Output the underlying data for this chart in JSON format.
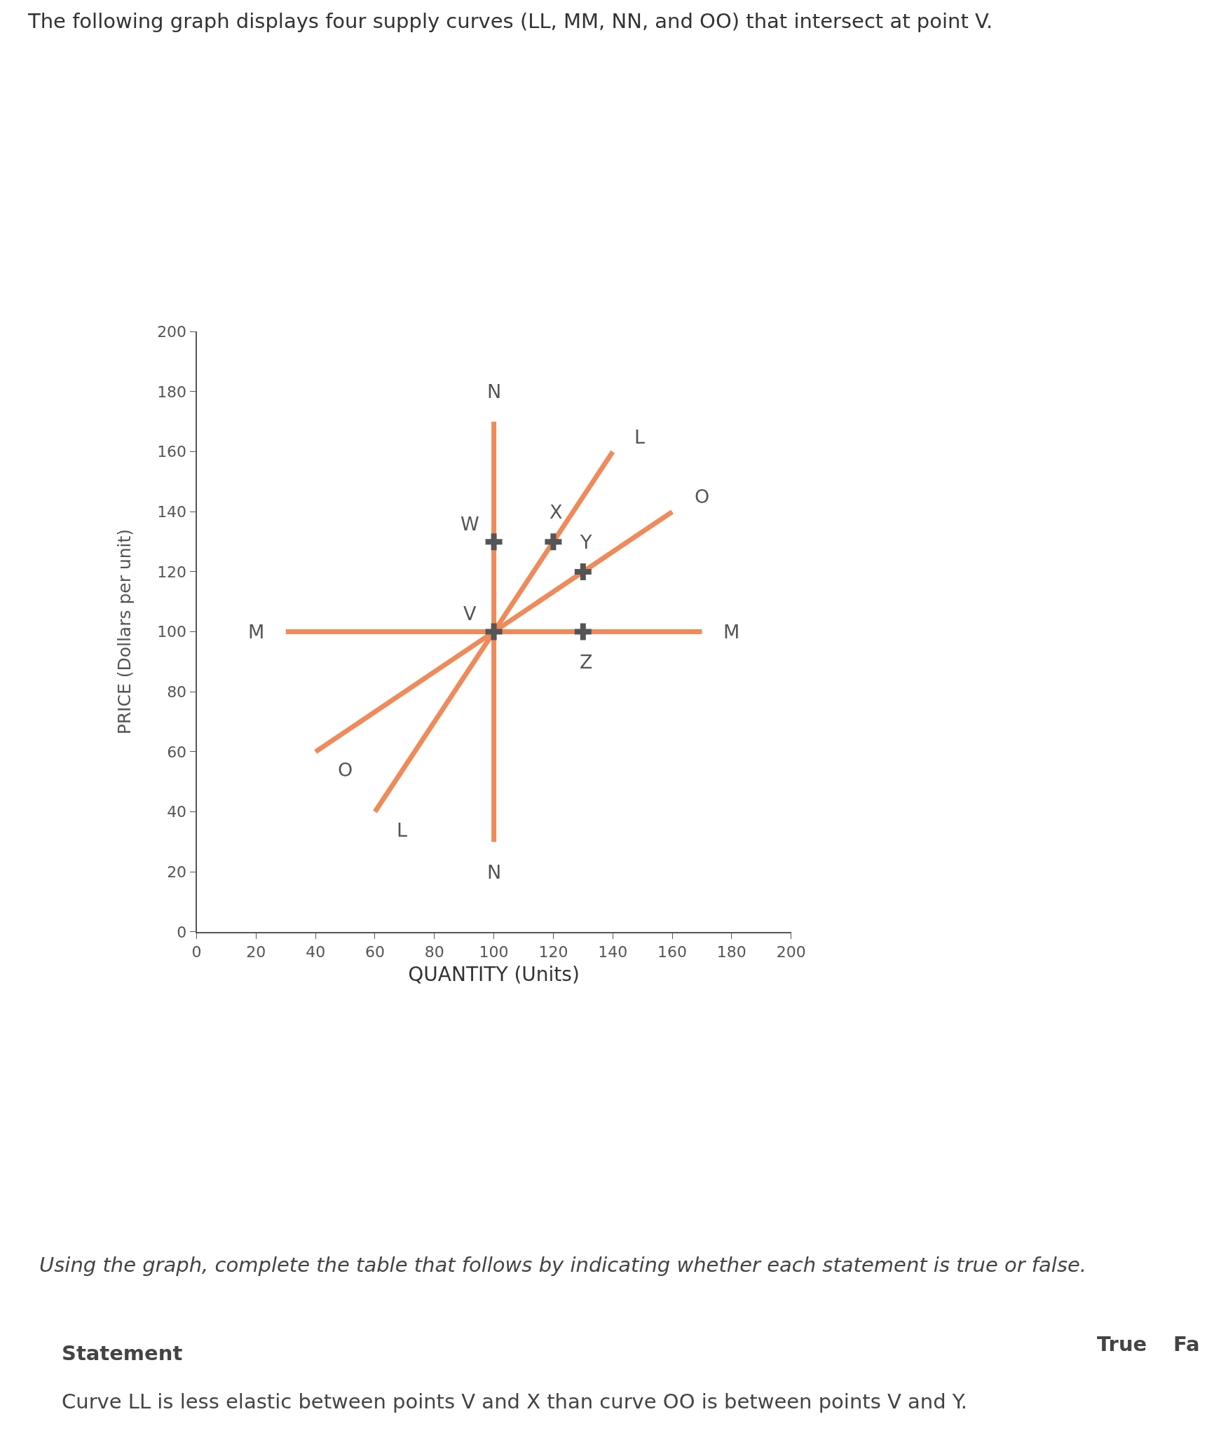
{
  "chart_data": {
    "type": "line",
    "title": "The following graph displays four supply curves (LL, MM, NN, and OO) that intersect at point V.",
    "xlabel": "QUANTITY (Units)",
    "ylabel": "PRICE (Dollars per unit)",
    "xlim": [
      0,
      200
    ],
    "ylim": [
      0,
      200
    ],
    "xticks": [
      0,
      20,
      40,
      60,
      80,
      100,
      120,
      140,
      160,
      180,
      200
    ],
    "yticks": [
      0,
      20,
      40,
      60,
      80,
      100,
      120,
      140,
      160,
      180,
      200
    ],
    "series": [
      {
        "color": "#ef8a5a",
        "x": [
          60,
          140
        ],
        "values": [
          40,
          160
        ]
      },
      {
        "color": "#ef8a5a",
        "x": [
          30,
          170
        ],
        "values": [
          100,
          100
        ]
      },
      {
        "color": "#ef8a5a",
        "x": [
          100,
          100
        ],
        "values": [
          30,
          170
        ]
      },
      {
        "color": "#ef8a5a",
        "x": [
          40,
          160
        ],
        "values": [
          60,
          140
        ]
      },
      {
        "type": "scatter",
        "marker": "cross",
        "color": "#555555",
        "x": [
          100,
          120,
          130,
          130,
          100
        ],
        "values": [
          130,
          130,
          120,
          100,
          100
        ]
      }
    ],
    "annotations": [
      "N",
      "N",
      "L",
      "L",
      "O",
      "O",
      "M",
      "M",
      "W",
      "X",
      "Y",
      "Z",
      "V",
      "Using the graph, complete the table that follows by indicating whether each statement is true or false.",
      "Statement",
      "True",
      "Fa",
      "Curve LL is less elastic between points V and X than curve OO is between points V and Y."
    ]
  }
}
